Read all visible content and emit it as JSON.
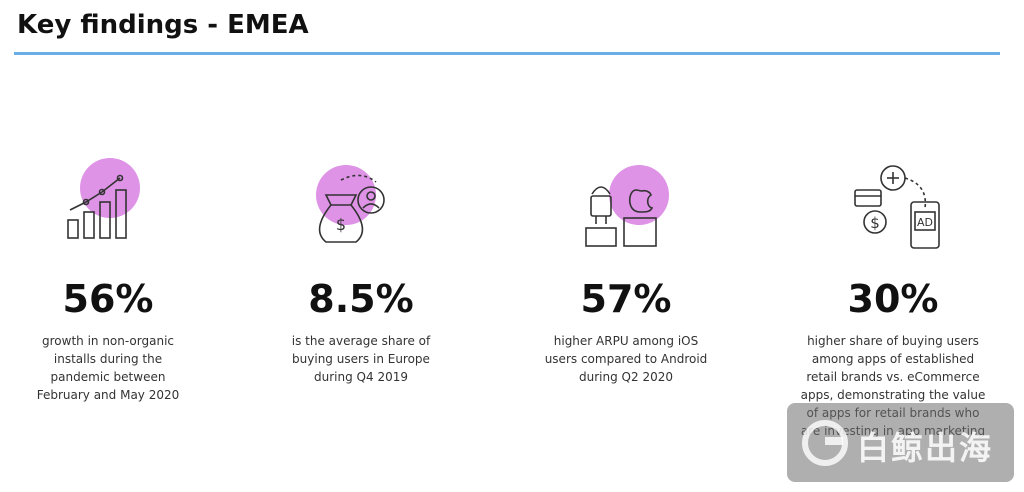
{
  "header": {
    "title": "Key findings - EMEA"
  },
  "findings": [
    {
      "stat": "56%",
      "description": [
        "growth in non-organic",
        "installs during the",
        "pandemic between",
        "February and May 2020"
      ]
    },
    {
      "stat": "8.5%",
      "description": [
        "is the average share of",
        "buying users in Europe",
        "during Q4 2019"
      ]
    },
    {
      "stat": "57%",
      "description": [
        "higher ARPU among iOS",
        "users compared to Android",
        "during Q2 2020"
      ]
    },
    {
      "stat": "30%",
      "description": [
        "higher share of buying users",
        "among apps of established",
        "retail brands vs. eCommerce",
        "apps, demonstrating the value",
        "of apps for retail brands who",
        "are investing in app marketing"
      ]
    }
  ],
  "watermark": "白鲸出海"
}
